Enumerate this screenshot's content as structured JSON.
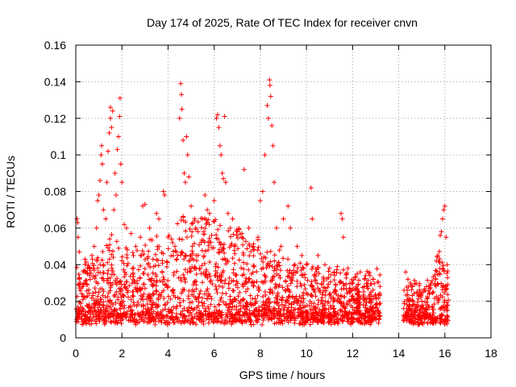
{
  "chart_data": {
    "type": "scatter",
    "title": "Day 174 of 2025, Rate Of TEC Index for receiver cnvn",
    "xlabel": "GPS time / hours",
    "ylabel": "ROTI / TECUs",
    "xlim": [
      0,
      18
    ],
    "ylim": [
      0,
      0.16
    ],
    "xticks": [
      0,
      2,
      4,
      6,
      8,
      10,
      12,
      14,
      16,
      18
    ],
    "xtick_labels": [
      "0",
      "2",
      "4",
      "6",
      "8",
      "10",
      "12",
      "14",
      "16",
      "18"
    ],
    "yticks": [
      0,
      0.02,
      0.04,
      0.06,
      0.08,
      0.1,
      0.12,
      0.14,
      0.16
    ],
    "ytick_labels": [
      "0",
      "0.02",
      "0.04",
      "0.06",
      "0.08",
      "0.1",
      "0.12",
      "0.14",
      "0.16"
    ],
    "grid": true,
    "marker": "plus",
    "color": "#ff0000",
    "data_gap_hours": [
      13.2,
      14.2
    ],
    "series": [
      {
        "name": "ROTI",
        "points": [
          [
            0.05,
            0.065
          ],
          [
            0.08,
            0.063
          ],
          [
            0.1,
            0.055
          ],
          [
            0.15,
            0.047
          ],
          [
            0.2,
            0.03
          ],
          [
            0.3,
            0.028
          ],
          [
            0.4,
            0.043
          ],
          [
            0.5,
            0.035
          ],
          [
            0.6,
            0.038
          ],
          [
            0.7,
            0.045
          ],
          [
            0.8,
            0.05
          ],
          [
            0.9,
            0.06
          ],
          [
            0.95,
            0.075
          ],
          [
            1.0,
            0.078
          ],
          [
            1.05,
            0.086
          ],
          [
            1.1,
            0.1
          ],
          [
            1.12,
            0.105
          ],
          [
            1.15,
            0.095
          ],
          [
            1.2,
            0.07
          ],
          [
            1.3,
            0.065
          ],
          [
            1.35,
            0.085
          ],
          [
            1.4,
            0.102
          ],
          [
            1.45,
            0.112
          ],
          [
            1.5,
            0.12
          ],
          [
            1.5,
            0.126
          ],
          [
            1.55,
            0.115
          ],
          [
            1.6,
            0.124
          ],
          [
            1.65,
            0.07
          ],
          [
            1.7,
            0.09
          ],
          [
            1.75,
            0.078
          ],
          [
            1.8,
            0.103
          ],
          [
            1.85,
            0.11
          ],
          [
            1.9,
            0.121
          ],
          [
            1.92,
            0.131
          ],
          [
            1.95,
            0.095
          ],
          [
            2.0,
            0.085
          ],
          [
            2.1,
            0.062
          ],
          [
            2.2,
            0.06
          ],
          [
            2.4,
            0.057
          ],
          [
            2.6,
            0.05
          ],
          [
            2.8,
            0.055
          ],
          [
            2.9,
            0.072
          ],
          [
            3.0,
            0.073
          ],
          [
            3.2,
            0.06
          ],
          [
            3.5,
            0.068
          ],
          [
            3.6,
            0.065
          ],
          [
            3.8,
            0.08
          ],
          [
            3.85,
            0.078
          ],
          [
            4.0,
            0.055
          ],
          [
            4.2,
            0.052
          ],
          [
            4.3,
            0.05
          ],
          [
            4.5,
            0.12
          ],
          [
            4.55,
            0.139
          ],
          [
            4.58,
            0.133
          ],
          [
            4.6,
            0.125
          ],
          [
            4.65,
            0.108
          ],
          [
            4.7,
            0.09
          ],
          [
            4.75,
            0.085
          ],
          [
            4.8,
            0.11
          ],
          [
            4.85,
            0.1
          ],
          [
            4.9,
            0.088
          ],
          [
            5.0,
            0.072
          ],
          [
            5.2,
            0.06
          ],
          [
            5.3,
            0.058
          ],
          [
            5.5,
            0.065
          ],
          [
            5.6,
            0.078
          ],
          [
            5.7,
            0.07
          ],
          [
            5.8,
            0.068
          ],
          [
            6.0,
            0.075
          ],
          [
            6.1,
            0.12
          ],
          [
            6.15,
            0.122
          ],
          [
            6.2,
            0.115
          ],
          [
            6.25,
            0.105
          ],
          [
            6.3,
            0.1
          ],
          [
            6.35,
            0.09
          ],
          [
            6.4,
            0.087
          ],
          [
            6.45,
            0.121
          ],
          [
            6.5,
            0.085
          ],
          [
            6.6,
            0.068
          ],
          [
            6.7,
            0.06
          ],
          [
            6.8,
            0.065
          ],
          [
            7.0,
            0.058
          ],
          [
            7.2,
            0.055
          ],
          [
            7.3,
            0.092
          ],
          [
            7.5,
            0.06
          ],
          [
            7.7,
            0.05
          ],
          [
            7.9,
            0.055
          ],
          [
            8.0,
            0.075
          ],
          [
            8.1,
            0.08
          ],
          [
            8.2,
            0.1
          ],
          [
            8.3,
            0.127
          ],
          [
            8.35,
            0.12
          ],
          [
            8.4,
            0.141
          ],
          [
            8.42,
            0.138
          ],
          [
            8.45,
            0.132
          ],
          [
            8.5,
            0.116
          ],
          [
            8.55,
            0.105
          ],
          [
            8.6,
            0.085
          ],
          [
            8.7,
            0.06
          ],
          [
            8.9,
            0.05
          ],
          [
            9.0,
            0.065
          ],
          [
            9.2,
            0.072
          ],
          [
            9.3,
            0.06
          ],
          [
            9.5,
            0.04
          ],
          [
            9.6,
            0.05
          ],
          [
            9.8,
            0.045
          ],
          [
            10.0,
            0.04
          ],
          [
            10.2,
            0.082
          ],
          [
            10.25,
            0.065
          ],
          [
            10.5,
            0.045
          ],
          [
            10.8,
            0.04
          ],
          [
            11.0,
            0.038
          ],
          [
            11.2,
            0.036
          ],
          [
            11.5,
            0.068
          ],
          [
            11.55,
            0.065
          ],
          [
            11.6,
            0.055
          ],
          [
            11.8,
            0.038
          ],
          [
            12.0,
            0.03
          ],
          [
            12.2,
            0.035
          ],
          [
            12.5,
            0.028
          ],
          [
            12.8,
            0.025
          ],
          [
            13.0,
            0.018
          ],
          [
            13.1,
            0.015
          ],
          [
            13.2,
            0.012
          ],
          [
            14.3,
            0.036
          ],
          [
            14.4,
            0.032
          ],
          [
            14.5,
            0.03
          ],
          [
            14.6,
            0.028
          ],
          [
            14.8,
            0.025
          ],
          [
            15.0,
            0.02
          ],
          [
            15.2,
            0.028
          ],
          [
            15.4,
            0.03
          ],
          [
            15.5,
            0.025
          ],
          [
            15.6,
            0.032
          ],
          [
            15.7,
            0.045
          ],
          [
            15.8,
            0.056
          ],
          [
            15.85,
            0.058
          ],
          [
            15.9,
            0.065
          ],
          [
            15.95,
            0.07
          ],
          [
            16.0,
            0.072
          ],
          [
            16.05,
            0.055
          ],
          [
            16.1,
            0.04
          ]
        ]
      }
    ]
  }
}
